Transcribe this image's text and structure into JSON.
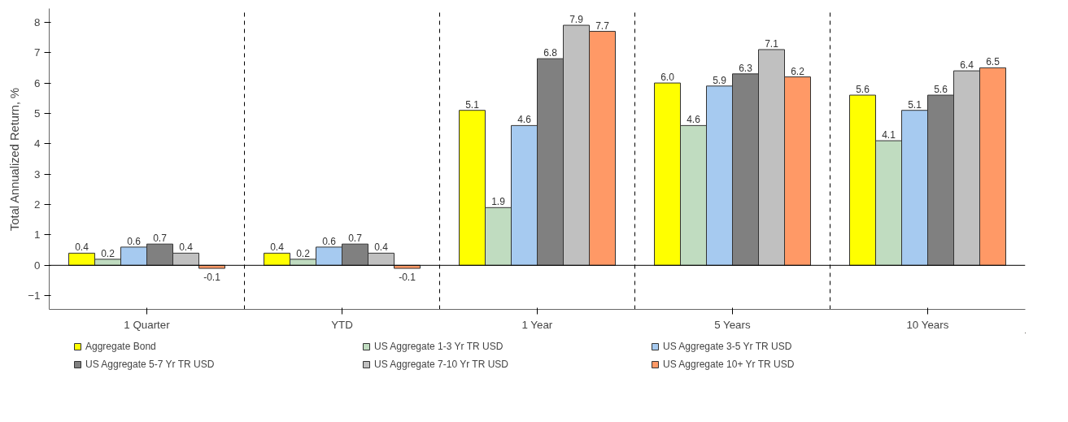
{
  "chart_data": {
    "type": "bar",
    "ylabel": "Total Annualized Return, %",
    "categories": [
      "1 Quarter",
      "YTD",
      "1 Year",
      "5 Years",
      "10 Years"
    ],
    "series": [
      {
        "name": "Aggregate Bond",
        "color": "#ffff00",
        "values": [
          0.4,
          0.4,
          5.1,
          6.0,
          5.6
        ],
        "value_labels": [
          "0.4",
          "0.4",
          "5.1",
          "6.0",
          "5.6"
        ]
      },
      {
        "name": "US Aggregate 1-3 Yr TR USD",
        "color": "#c0dcc0",
        "values": [
          0.2,
          0.2,
          1.9,
          4.6,
          4.1
        ],
        "value_labels": [
          "0.2",
          "0.2",
          "1.9",
          "4.6",
          "4.1"
        ]
      },
      {
        "name": "US Aggregate 3-5 Yr TR USD",
        "color": "#a6caf0",
        "values": [
          0.6,
          0.6,
          4.6,
          5.9,
          5.1
        ],
        "value_labels": [
          "0.6",
          "0.6",
          "4.6",
          "5.9",
          "5.1"
        ]
      },
      {
        "name": "US Aggregate 5-7 Yr TR USD",
        "color": "#808080",
        "values": [
          0.7,
          0.7,
          6.8,
          6.3,
          5.6
        ],
        "value_labels": [
          "0.7",
          "0.7",
          "6.8",
          "6.3",
          "5.6"
        ]
      },
      {
        "name": "US Aggregate 7-10 Yr TR USD",
        "color": "#c0c0c0",
        "values": [
          0.4,
          0.4,
          7.9,
          7.1,
          6.4
        ],
        "value_labels": [
          "0.4",
          "0.4",
          "7.9",
          "7.1",
          "6.4"
        ]
      },
      {
        "name": "US Aggregate 10+ Yr TR USD",
        "color": "#ff9966",
        "values": [
          -0.1,
          -0.1,
          7.7,
          6.2,
          6.5
        ],
        "value_labels": [
          "-0.1",
          "-0.1",
          "7.7",
          "6.2",
          "6.5"
        ]
      }
    ],
    "ylim": [
      -1.45,
      8.45
    ],
    "yticks": [
      -1,
      0,
      1,
      2,
      3,
      4,
      5,
      6,
      7,
      8
    ],
    "grid": "x",
    "legend": "bottom"
  }
}
